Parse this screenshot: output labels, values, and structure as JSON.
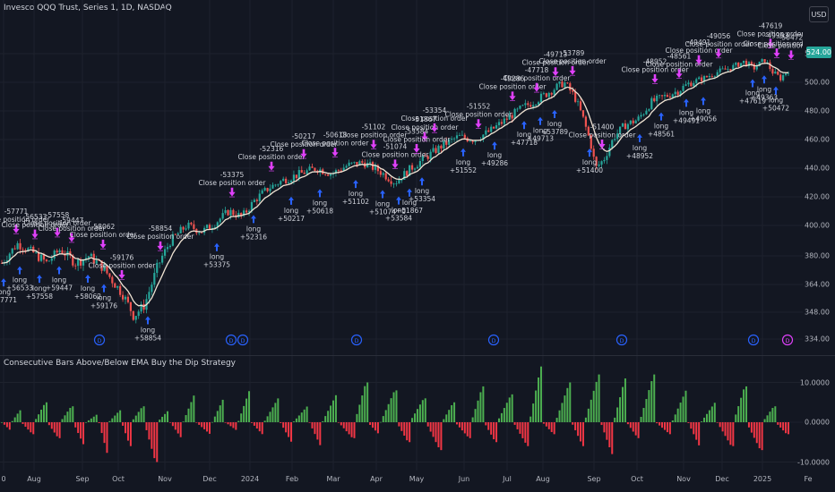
{
  "chart_title": "Invesco QQQ Trust, Series 1, 1D, NASDAQ",
  "currency_button": "USD",
  "current_price": "524.00",
  "colors": {
    "bg": "#131722",
    "up": "#26a69a",
    "down": "#ef5350",
    "ema": "#f0e4d4",
    "long": "#2962ff",
    "close": "#e040fb",
    "hist_up": "#4caf50",
    "hist_down": "#f23645"
  },
  "price_axis": {
    "min": 334,
    "max": 528,
    "ticks": [
      "528.00",
      "500.00",
      "480.00",
      "460.00",
      "440.00",
      "420.00",
      "400.00",
      "380.00",
      "364.00",
      "348.00",
      "334.00"
    ]
  },
  "osc_title": "Consecutive Bars Above/Below EMA Buy the Dip Strategy",
  "osc_axis": {
    "ticks": [
      "10.0000",
      "0.0000",
      "-10.0000"
    ]
  },
  "time_axis": [
    "0",
    "Aug",
    "Sep",
    "Oct",
    "Nov",
    "Dec",
    "2024",
    "Feb",
    "Mar",
    "Apr",
    "May",
    "Jun",
    "Jul",
    "Aug",
    "Sep",
    "Oct",
    "Nov",
    "Dec",
    "2025",
    "Fe"
  ],
  "annotations": {
    "close_label": "Close position order",
    "long_label": "long",
    "long_trades": [
      "+57771",
      "+56533",
      "+57558",
      "+59447",
      "+58062",
      "+59176",
      "+58854",
      "+53375",
      "+52316",
      "+50217",
      "+50618",
      "+51102",
      "+51074",
      "+51867",
      "+53584",
      "+53354",
      "+51552",
      "+49286",
      "+47718",
      "+49713",
      "+53789",
      "+51400",
      "+48952",
      "+48561",
      "+49491",
      "+49056",
      "+47619",
      "+49363",
      "+50472"
    ],
    "close_trades": [
      "-57771",
      "-56533",
      "-57558",
      "-59447",
      "-58062",
      "-59176",
      "-58854",
      "-53375",
      "-52316",
      "-50217",
      "-50618",
      "-51102",
      "-51074",
      "-51867",
      "-53584",
      "-53354",
      "-51552",
      "-49286",
      "-47718",
      "-49713",
      "-53789",
      "-51400",
      "-48952",
      "-48561",
      "-49491",
      "-49056",
      "-47619",
      "-49363",
      "-50472"
    ]
  },
  "event_markers": [
    "D",
    "D",
    "D",
    "D",
    "D",
    "D",
    "D",
    "D"
  ],
  "chart_data": {
    "type": "candlestick+histogram",
    "title": "Invesco QQQ Trust, Series 1, 1D, NASDAQ",
    "x_range": [
      "2023-07",
      "2025-02"
    ],
    "ylim": [
      334,
      528
    ],
    "price_anchors": [
      [
        0,
        376
      ],
      [
        12,
        388
      ],
      [
        24,
        382
      ],
      [
        34,
        376
      ],
      [
        44,
        384
      ],
      [
        56,
        376
      ],
      [
        66,
        380
      ],
      [
        76,
        374
      ],
      [
        84,
        366
      ],
      [
        92,
        358
      ],
      [
        100,
        346
      ],
      [
        108,
        352
      ],
      [
        118,
        374
      ],
      [
        128,
        390
      ],
      [
        140,
        400
      ],
      [
        152,
        396
      ],
      [
        162,
        402
      ],
      [
        172,
        410
      ],
      [
        182,
        406
      ],
      [
        192,
        418
      ],
      [
        202,
        426
      ],
      [
        214,
        432
      ],
      [
        226,
        436
      ],
      [
        238,
        440
      ],
      [
        250,
        436
      ],
      [
        262,
        442
      ],
      [
        274,
        444
      ],
      [
        286,
        438
      ],
      [
        298,
        430
      ],
      [
        310,
        440
      ],
      [
        322,
        448
      ],
      [
        334,
        456
      ],
      [
        346,
        462
      ],
      [
        358,
        460
      ],
      [
        370,
        466
      ],
      [
        382,
        474
      ],
      [
        394,
        482
      ],
      [
        406,
        488
      ],
      [
        416,
        494
      ],
      [
        426,
        500
      ],
      [
        434,
        490
      ],
      [
        440,
        476
      ],
      [
        446,
        458
      ],
      [
        450,
        440
      ],
      [
        456,
        446
      ],
      [
        464,
        462
      ],
      [
        472,
        470
      ],
      [
        482,
        474
      ],
      [
        492,
        486
      ],
      [
        502,
        490
      ],
      [
        512,
        494
      ],
      [
        522,
        500
      ],
      [
        532,
        504
      ],
      [
        542,
        510
      ],
      [
        552,
        514
      ],
      [
        562,
        520
      ],
      [
        570,
        514
      ],
      [
        578,
        522
      ],
      [
        584,
        510
      ],
      [
        590,
        504
      ],
      [
        596,
        512
      ]
    ],
    "osc_anchors": [
      [
        0,
        -2
      ],
      [
        6,
        3
      ],
      [
        12,
        -3
      ],
      [
        20,
        5
      ],
      [
        28,
        -4
      ],
      [
        36,
        4
      ],
      [
        44,
        -6
      ],
      [
        52,
        2
      ],
      [
        60,
        -8
      ],
      [
        66,
        3
      ],
      [
        74,
        -6
      ],
      [
        80,
        4
      ],
      [
        88,
        -10
      ],
      [
        96,
        3
      ],
      [
        104,
        -4
      ],
      [
        112,
        7
      ],
      [
        120,
        -3
      ],
      [
        130,
        6
      ],
      [
        138,
        -2
      ],
      [
        146,
        8
      ],
      [
        154,
        -3
      ],
      [
        162,
        6
      ],
      [
        172,
        -5
      ],
      [
        180,
        4
      ],
      [
        190,
        -6
      ],
      [
        198,
        7
      ],
      [
        208,
        -4
      ],
      [
        218,
        10
      ],
      [
        226,
        -3
      ],
      [
        234,
        8
      ],
      [
        244,
        -5
      ],
      [
        252,
        6
      ],
      [
        262,
        -7
      ],
      [
        272,
        5
      ],
      [
        280,
        -4
      ],
      [
        290,
        9
      ],
      [
        298,
        -5
      ],
      [
        306,
        7
      ],
      [
        316,
        -6
      ],
      [
        326,
        14
      ],
      [
        334,
        -3
      ],
      [
        342,
        10
      ],
      [
        352,
        -6
      ],
      [
        360,
        12
      ],
      [
        370,
        -8
      ],
      [
        378,
        11
      ],
      [
        386,
        -4
      ],
      [
        394,
        12
      ],
      [
        404,
        -3
      ],
      [
        414,
        8
      ],
      [
        424,
        -6
      ],
      [
        432,
        5
      ],
      [
        442,
        -6
      ],
      [
        452,
        9
      ],
      [
        460,
        -7
      ],
      [
        470,
        4
      ],
      [
        478,
        -3
      ],
      [
        486,
        6
      ]
    ],
    "osc_ylim": [
      -10,
      14
    ]
  }
}
